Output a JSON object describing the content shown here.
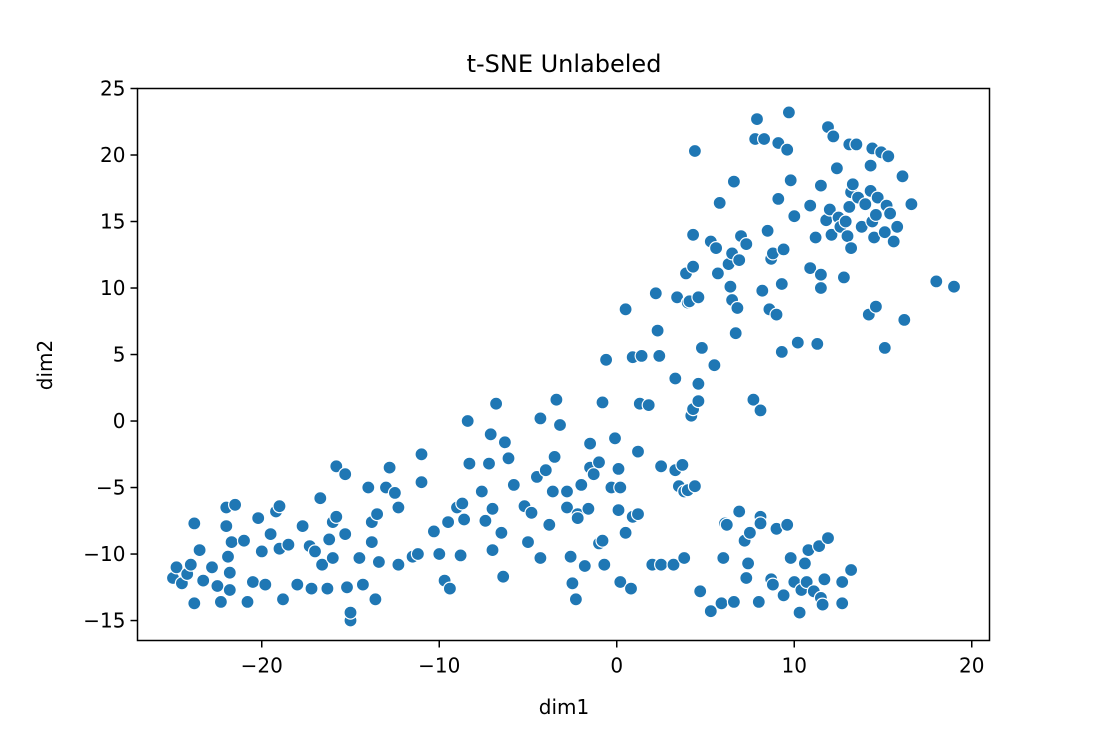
{
  "chart_data": {
    "type": "scatter",
    "title": "t-SNE Unlabeled",
    "xlabel": "dim1",
    "ylabel": "dim2",
    "xlim": [
      -27,
      21
    ],
    "ylim": [
      -16.5,
      25
    ],
    "x_ticks": [
      -20,
      -10,
      0,
      10,
      20
    ],
    "x_tick_labels": [
      "−20",
      "−10",
      "0",
      "10",
      "20"
    ],
    "y_ticks": [
      -15,
      -10,
      -5,
      0,
      5,
      10,
      15,
      20,
      25
    ],
    "y_tick_labels": [
      "−15",
      "−10",
      "−5",
      "0",
      "5",
      "10",
      "15",
      "20",
      "25"
    ],
    "grid": false,
    "marker_color": "#1f77b4",
    "marker_edge_color": "#ffffff",
    "points": [
      [
        -25.0,
        -11.8
      ],
      [
        -24.8,
        -11.0
      ],
      [
        -24.5,
        -12.2
      ],
      [
        -24.2,
        -11.5
      ],
      [
        -24.0,
        -10.8
      ],
      [
        -23.8,
        -7.7
      ],
      [
        -23.8,
        -13.7
      ],
      [
        -23.5,
        -9.7
      ],
      [
        -23.3,
        -12.0
      ],
      [
        -22.8,
        -11.0
      ],
      [
        -22.5,
        -12.4
      ],
      [
        -22.3,
        -13.6
      ],
      [
        -22.0,
        -6.5
      ],
      [
        -22.0,
        -7.9
      ],
      [
        -21.9,
        -10.2
      ],
      [
        -21.8,
        -11.4
      ],
      [
        -21.8,
        -12.7
      ],
      [
        -21.7,
        -9.1
      ],
      [
        -21.5,
        -6.3
      ],
      [
        -21.0,
        -9.0
      ],
      [
        -20.8,
        -13.6
      ],
      [
        -20.5,
        -12.1
      ],
      [
        -20.2,
        -7.3
      ],
      [
        -20.0,
        -9.8
      ],
      [
        -19.8,
        -12.3
      ],
      [
        -19.5,
        -8.5
      ],
      [
        -19.2,
        -6.8
      ],
      [
        -19.0,
        -6.4
      ],
      [
        -19.0,
        -9.6
      ],
      [
        -18.8,
        -13.4
      ],
      [
        -18.5,
        -9.3
      ],
      [
        -18.0,
        -12.3
      ],
      [
        -17.7,
        -7.9
      ],
      [
        -17.3,
        -9.4
      ],
      [
        -17.2,
        -12.6
      ],
      [
        -17.0,
        -9.8
      ],
      [
        -16.7,
        -5.8
      ],
      [
        -16.6,
        -10.8
      ],
      [
        -16.3,
        -12.6
      ],
      [
        -16.2,
        -8.9
      ],
      [
        -16.0,
        -7.6
      ],
      [
        -16.0,
        -10.3
      ],
      [
        -15.8,
        -3.4
      ],
      [
        -15.8,
        -7.2
      ],
      [
        -15.3,
        -4.0
      ],
      [
        -15.3,
        -8.5
      ],
      [
        -15.2,
        -12.5
      ],
      [
        -15.0,
        -15.0
      ],
      [
        -15.0,
        -14.4
      ],
      [
        -14.5,
        -10.3
      ],
      [
        -14.3,
        -12.3
      ],
      [
        -14.0,
        -5.0
      ],
      [
        -13.8,
        -7.6
      ],
      [
        -13.8,
        -9.1
      ],
      [
        -13.5,
        -7.0
      ],
      [
        -13.6,
        -13.4
      ],
      [
        -13.4,
        -10.6
      ],
      [
        -13.0,
        -5.0
      ],
      [
        -12.8,
        -3.5
      ],
      [
        -12.5,
        -5.4
      ],
      [
        -12.3,
        -6.5
      ],
      [
        -12.3,
        -10.8
      ],
      [
        -11.5,
        -10.2
      ],
      [
        -11.2,
        -10.0
      ],
      [
        -11.0,
        -2.5
      ],
      [
        -11.0,
        -4.6
      ],
      [
        -10.3,
        -8.3
      ],
      [
        -10.0,
        -10.0
      ],
      [
        -9.7,
        -12.0
      ],
      [
        -9.5,
        -7.6
      ],
      [
        -9.4,
        -12.6
      ],
      [
        -9.0,
        -6.5
      ],
      [
        -8.8,
        -10.1
      ],
      [
        -8.7,
        -6.2
      ],
      [
        -8.6,
        -7.4
      ],
      [
        -8.4,
        0.0
      ],
      [
        -8.3,
        -3.2
      ],
      [
        -7.6,
        -5.3
      ],
      [
        -7.4,
        -7.5
      ],
      [
        -7.2,
        -3.2
      ],
      [
        -7.1,
        -1.0
      ],
      [
        -7.0,
        -6.6
      ],
      [
        -7.0,
        -9.7
      ],
      [
        -6.8,
        1.3
      ],
      [
        -6.5,
        -8.4
      ],
      [
        -6.4,
        -11.7
      ],
      [
        -6.3,
        -1.6
      ],
      [
        -6.1,
        -2.8
      ],
      [
        -5.8,
        -4.8
      ],
      [
        -5.2,
        -6.4
      ],
      [
        -5.0,
        -9.1
      ],
      [
        -4.8,
        -6.9
      ],
      [
        -4.5,
        -4.2
      ],
      [
        -4.3,
        0.2
      ],
      [
        -4.3,
        -10.3
      ],
      [
        -4.0,
        -3.7
      ],
      [
        -3.8,
        -7.8
      ],
      [
        -3.6,
        -5.3
      ],
      [
        -3.5,
        -2.7
      ],
      [
        -3.4,
        1.6
      ],
      [
        -3.2,
        -0.3
      ],
      [
        -2.8,
        -5.3
      ],
      [
        -2.8,
        -6.5
      ],
      [
        -2.6,
        -10.2
      ],
      [
        -2.5,
        -12.2
      ],
      [
        -2.3,
        -13.4
      ],
      [
        -2.2,
        -7.0
      ],
      [
        -2.2,
        -7.3
      ],
      [
        -2.0,
        -4.8
      ],
      [
        -1.8,
        -10.9
      ],
      [
        -1.6,
        -6.6
      ],
      [
        -1.5,
        -1.7
      ],
      [
        -1.5,
        -3.5
      ],
      [
        -1.3,
        -4.0
      ],
      [
        -1.0,
        -3.1
      ],
      [
        -1.0,
        -9.2
      ],
      [
        -0.8,
        -9.0
      ],
      [
        -0.8,
        1.4
      ],
      [
        -0.7,
        -10.8
      ],
      [
        -0.6,
        4.6
      ],
      [
        -0.3,
        -5.0
      ],
      [
        -0.1,
        -1.3
      ],
      [
        0.1,
        -3.6
      ],
      [
        0.1,
        -6.7
      ],
      [
        0.2,
        -12.1
      ],
      [
        0.2,
        -5.0
      ],
      [
        0.5,
        -8.4
      ],
      [
        0.5,
        8.4
      ],
      [
        0.8,
        -12.6
      ],
      [
        0.9,
        4.8
      ],
      [
        0.9,
        -7.2
      ],
      [
        1.2,
        -7.0
      ],
      [
        1.2,
        -2.3
      ],
      [
        1.3,
        1.3
      ],
      [
        1.4,
        4.9
      ],
      [
        1.8,
        1.2
      ],
      [
        2.0,
        -10.8
      ],
      [
        2.2,
        9.6
      ],
      [
        2.3,
        6.8
      ],
      [
        2.4,
        4.9
      ],
      [
        2.5,
        -3.4
      ],
      [
        2.5,
        -10.8
      ],
      [
        3.2,
        -10.8
      ],
      [
        3.3,
        -3.7
      ],
      [
        3.3,
        3.2
      ],
      [
        3.4,
        9.3
      ],
      [
        3.5,
        -4.9
      ],
      [
        3.7,
        -3.3
      ],
      [
        3.8,
        -5.3
      ],
      [
        3.8,
        -10.3
      ],
      [
        3.9,
        11.1
      ],
      [
        4.0,
        -5.2
      ],
      [
        4.0,
        8.9
      ],
      [
        4.1,
        9.0
      ],
      [
        4.2,
        0.4
      ],
      [
        4.3,
        0.9
      ],
      [
        4.3,
        11.6
      ],
      [
        4.3,
        14.0
      ],
      [
        4.4,
        20.3
      ],
      [
        4.4,
        -4.9
      ],
      [
        4.6,
        2.8
      ],
      [
        4.6,
        9.3
      ],
      [
        4.6,
        1.5
      ],
      [
        4.7,
        -12.8
      ],
      [
        4.8,
        5.5
      ],
      [
        5.3,
        13.5
      ],
      [
        5.3,
        -14.3
      ],
      [
        5.5,
        4.2
      ],
      [
        5.6,
        13.0
      ],
      [
        5.7,
        11.1
      ],
      [
        5.8,
        16.4
      ],
      [
        5.9,
        -13.7
      ],
      [
        6.0,
        -10.3
      ],
      [
        6.1,
        -7.7
      ],
      [
        6.2,
        -7.8
      ],
      [
        6.3,
        11.8
      ],
      [
        6.4,
        10.1
      ],
      [
        6.5,
        12.6
      ],
      [
        6.5,
        9.1
      ],
      [
        6.6,
        18.0
      ],
      [
        6.6,
        -13.6
      ],
      [
        6.7,
        6.6
      ],
      [
        6.8,
        8.5
      ],
      [
        6.9,
        -6.8
      ],
      [
        6.9,
        12.1
      ],
      [
        7.0,
        13.9
      ],
      [
        7.2,
        -9.0
      ],
      [
        7.3,
        -11.8
      ],
      [
        7.3,
        13.3
      ],
      [
        7.4,
        -10.7
      ],
      [
        7.5,
        -8.4
      ],
      [
        7.7,
        1.6
      ],
      [
        7.8,
        21.2
      ],
      [
        7.9,
        22.7
      ],
      [
        8.0,
        -13.6
      ],
      [
        8.1,
        0.8
      ],
      [
        8.1,
        -7.2
      ],
      [
        8.1,
        -7.7
      ],
      [
        8.2,
        9.8
      ],
      [
        8.3,
        21.2
      ],
      [
        8.5,
        14.3
      ],
      [
        8.6,
        8.4
      ],
      [
        8.7,
        -11.9
      ],
      [
        8.7,
        12.2
      ],
      [
        8.8,
        -12.3
      ],
      [
        8.8,
        12.6
      ],
      [
        9.0,
        8.0
      ],
      [
        9.0,
        -8.1
      ],
      [
        9.1,
        20.9
      ],
      [
        9.1,
        16.7
      ],
      [
        9.3,
        10.3
      ],
      [
        9.3,
        5.2
      ],
      [
        9.4,
        12.9
      ],
      [
        9.4,
        -13.1
      ],
      [
        9.6,
        -7.8
      ],
      [
        9.6,
        20.4
      ],
      [
        9.7,
        23.2
      ],
      [
        9.8,
        -10.3
      ],
      [
        9.8,
        18.1
      ],
      [
        10.0,
        15.4
      ],
      [
        10.0,
        -12.1
      ],
      [
        10.2,
        5.9
      ],
      [
        10.3,
        -14.4
      ],
      [
        10.4,
        -12.7
      ],
      [
        10.6,
        -10.7
      ],
      [
        10.7,
        -12.1
      ],
      [
        10.8,
        -9.7
      ],
      [
        10.9,
        11.5
      ],
      [
        10.9,
        16.2
      ],
      [
        11.1,
        -12.8
      ],
      [
        11.2,
        13.8
      ],
      [
        11.3,
        5.8
      ],
      [
        11.4,
        -9.4
      ],
      [
        11.5,
        17.7
      ],
      [
        11.5,
        -13.3
      ],
      [
        11.5,
        11.0
      ],
      [
        11.5,
        10.0
      ],
      [
        11.6,
        -13.8
      ],
      [
        11.7,
        -11.9
      ],
      [
        11.8,
        15.1
      ],
      [
        11.9,
        22.1
      ],
      [
        11.9,
        -8.8
      ],
      [
        12.0,
        15.9
      ],
      [
        12.1,
        14.0
      ],
      [
        12.2,
        21.4
      ],
      [
        12.4,
        19.0
      ],
      [
        12.5,
        15.3
      ],
      [
        12.6,
        14.6
      ],
      [
        12.7,
        -13.7
      ],
      [
        12.7,
        -12.1
      ],
      [
        12.8,
        10.8
      ],
      [
        12.9,
        15.0
      ],
      [
        13.0,
        13.9
      ],
      [
        13.1,
        16.1
      ],
      [
        13.1,
        20.8
      ],
      [
        13.2,
        17.2
      ],
      [
        13.2,
        -11.2
      ],
      [
        13.2,
        13.0
      ],
      [
        13.3,
        17.8
      ],
      [
        13.5,
        20.8
      ],
      [
        13.6,
        16.8
      ],
      [
        13.8,
        14.6
      ],
      [
        14.0,
        16.3
      ],
      [
        14.2,
        8.0
      ],
      [
        14.3,
        17.3
      ],
      [
        14.3,
        19.2
      ],
      [
        14.4,
        15.0
      ],
      [
        14.4,
        20.5
      ],
      [
        14.5,
        13.8
      ],
      [
        14.6,
        8.6
      ],
      [
        14.6,
        15.5
      ],
      [
        14.7,
        16.8
      ],
      [
        14.9,
        20.2
      ],
      [
        15.1,
        14.2
      ],
      [
        15.1,
        5.5
      ],
      [
        15.2,
        16.2
      ],
      [
        15.3,
        19.9
      ],
      [
        15.4,
        15.6
      ],
      [
        15.6,
        13.5
      ],
      [
        15.8,
        14.6
      ],
      [
        16.1,
        18.4
      ],
      [
        16.2,
        7.6
      ],
      [
        16.6,
        16.3
      ],
      [
        18.0,
        10.5
      ],
      [
        19.0,
        10.1
      ]
    ]
  }
}
